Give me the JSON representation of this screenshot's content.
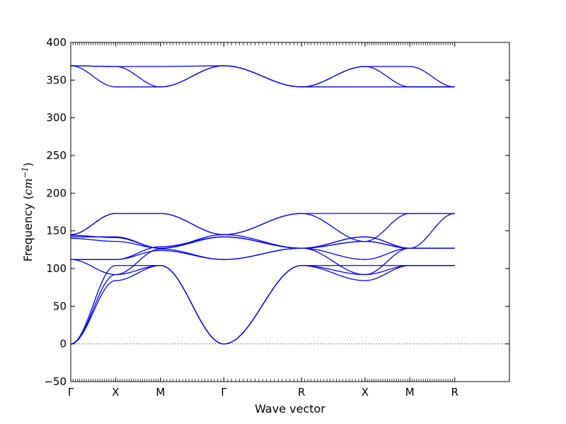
{
  "chart_data": {
    "type": "line",
    "title": "",
    "xlabel": "Wave vector",
    "ylabel": "Frequency (cm⁻¹)",
    "ylabel_main": "Frequency (",
    "ylabel_unit": "cm",
    "ylabel_exp": "−1",
    "ylabel_close": ")",
    "ylim": [
      -50,
      400
    ],
    "yticks": [
      -50,
      0,
      50,
      100,
      150,
      200,
      250,
      300,
      350,
      400
    ],
    "ytick_labels": [
      "−50",
      "0",
      "50",
      "100",
      "150",
      "200",
      "250",
      "300",
      "350",
      "400"
    ],
    "xlim": [
      0,
      4.89
    ],
    "x_ticks": [
      {
        "label": "Γ",
        "x": 0.0
      },
      {
        "label": "X",
        "x": 0.5
      },
      {
        "label": "M",
        "x": 1.0
      },
      {
        "label": "Γ",
        "x": 1.707
      },
      {
        "label": "R",
        "x": 2.573
      },
      {
        "label": "X",
        "x": 3.28
      },
      {
        "label": "M",
        "x": 3.78
      },
      {
        "label": "R",
        "x": 4.28
      }
    ],
    "zero_line": {
      "y": 0,
      "style": "dotted"
    },
    "color": "#0000ff",
    "grid": false,
    "series": [
      {
        "x": [
          0,
          0.5,
          1.0,
          1.707,
          2.573,
          3.28,
          3.78,
          4.28
        ],
        "y": [
          0,
          84,
          104,
          0,
          104,
          84,
          104,
          104
        ]
      },
      {
        "x": [
          0,
          0.5,
          1.0,
          1.707,
          2.573,
          3.28,
          3.78,
          4.28
        ],
        "y": [
          0,
          92,
          104,
          0,
          104,
          92,
          104,
          104
        ]
      },
      {
        "x": [
          0,
          0.5,
          1.0,
          1.707,
          2.573,
          3.28,
          3.78,
          4.28
        ],
        "y": [
          0,
          104,
          104,
          0,
          104,
          104,
          104,
          104
        ]
      },
      {
        "x": [
          0,
          0.5,
          1.0,
          1.707,
          2.573,
          3.28,
          3.78,
          4.28
        ],
        "y": [
          112,
          92,
          126,
          112,
          127,
          92,
          127,
          127
        ]
      },
      {
        "x": [
          0,
          0.5,
          1.0,
          1.707,
          2.573,
          3.28,
          3.78,
          4.28
        ],
        "y": [
          112,
          112,
          124,
          112,
          127,
          112,
          127,
          127
        ]
      },
      {
        "x": [
          0,
          0.5,
          1.0,
          1.707,
          2.573,
          3.28,
          3.78,
          4.28
        ],
        "y": [
          112,
          112,
          129,
          142,
          127,
          136,
          127,
          173
        ]
      },
      {
        "x": [
          0,
          0.5,
          1.0,
          1.707,
          2.573,
          3.28,
          3.78,
          4.28
        ],
        "y": [
          140,
          136,
          127,
          142,
          127,
          136,
          127,
          127
        ]
      },
      {
        "x": [
          0,
          0.5,
          1.0,
          1.707,
          2.573,
          3.28,
          3.78,
          4.28
        ],
        "y": [
          142,
          142,
          127,
          142,
          127,
          142,
          127,
          127
        ]
      },
      {
        "x": [
          0,
          0.5,
          1.0,
          1.707,
          2.573,
          3.28,
          3.78,
          4.28
        ],
        "y": [
          144,
          141,
          127,
          145,
          127,
          142,
          127,
          127
        ]
      },
      {
        "x": [
          0,
          0.5,
          1.0,
          1.707,
          2.573,
          3.28,
          3.78,
          4.28
        ],
        "y": [
          145,
          173,
          173,
          145,
          173,
          136,
          173,
          173
        ]
      },
      {
        "x": [
          0,
          0.5,
          1.0,
          1.707,
          2.573,
          3.28,
          3.78,
          4.28
        ],
        "y": [
          145,
          173,
          173,
          145,
          173,
          173,
          173,
          173
        ]
      },
      {
        "x": [
          0,
          0.5,
          1.0,
          1.707,
          2.573,
          3.28,
          3.78,
          4.28
        ],
        "y": [
          369,
          341,
          341,
          369,
          341,
          341,
          341,
          341
        ]
      },
      {
        "x": [
          0,
          0.5,
          1.0,
          1.707,
          2.573,
          3.28,
          3.78,
          4.28
        ],
        "y": [
          369,
          368,
          341,
          369,
          341,
          368,
          341,
          341
        ]
      },
      {
        "x": [
          0,
          0.5,
          1.0,
          1.707,
          2.573,
          3.28,
          3.78,
          4.28
        ],
        "y": [
          369,
          368,
          368,
          369,
          341,
          368,
          368,
          341
        ]
      }
    ]
  }
}
